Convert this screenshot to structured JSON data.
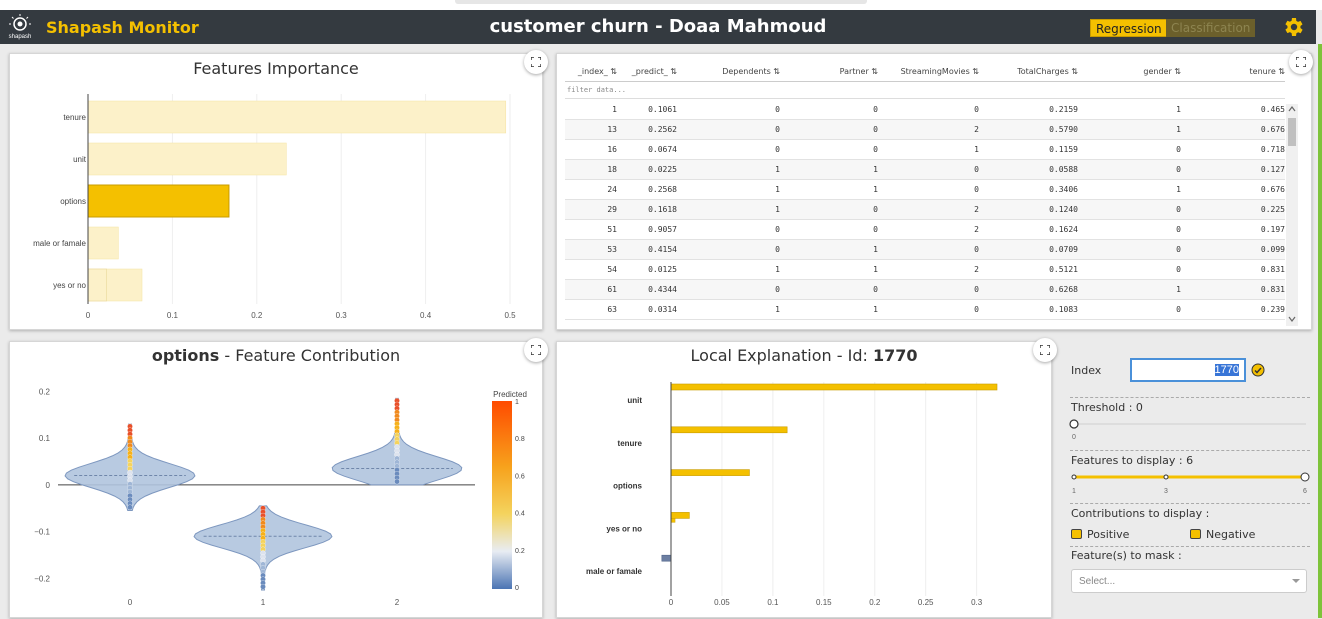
{
  "app": {
    "brand": "Shapash Monitor",
    "logo_text": "shapash",
    "title": "customer churn - Doaa Mahmoud",
    "btn_regression": "Regression",
    "btn_classification": "Classification"
  },
  "colors": {
    "accent": "#f4c000",
    "navbar": "#343a40",
    "violet": "#b0c4de",
    "green": "#7ec33a"
  },
  "features_importance": {
    "title": "Features Importance",
    "chart_data": {
      "type": "bar",
      "orientation": "horizontal",
      "categories": [
        "tenure",
        "unit",
        "options",
        "male or famale",
        "yes or no"
      ],
      "values": [
        0.495,
        0.235,
        0.167,
        0.036,
        0.064
      ],
      "overlay_values": [
        null,
        null,
        null,
        null,
        0.022
      ],
      "highlighted": "options",
      "xticks": [
        "0",
        "0.1",
        "0.2",
        "0.3",
        "0.4",
        "0.5"
      ],
      "xlim": [
        0,
        0.5
      ]
    }
  },
  "table": {
    "filter_placeholder": "filter data...",
    "columns": [
      "_index_",
      "_predict_",
      "Dependents",
      "Partner",
      "StreamingMovies",
      "TotalCharges",
      "gender",
      "tenure"
    ],
    "rows": [
      [
        "1",
        "0.1061",
        "0",
        "0",
        "0",
        "0.2159",
        "1",
        "0.465"
      ],
      [
        "13",
        "0.2562",
        "0",
        "0",
        "2",
        "0.5790",
        "1",
        "0.676"
      ],
      [
        "16",
        "0.0674",
        "0",
        "0",
        "1",
        "0.1159",
        "0",
        "0.718"
      ],
      [
        "18",
        "0.0225",
        "1",
        "1",
        "0",
        "0.0588",
        "0",
        "0.127"
      ],
      [
        "24",
        "0.2568",
        "1",
        "1",
        "0",
        "0.3406",
        "1",
        "0.676"
      ],
      [
        "29",
        "0.1618",
        "1",
        "0",
        "2",
        "0.1240",
        "0",
        "0.225"
      ],
      [
        "51",
        "0.9057",
        "0",
        "0",
        "2",
        "0.1624",
        "0",
        "0.197"
      ],
      [
        "53",
        "0.4154",
        "0",
        "1",
        "0",
        "0.0709",
        "0",
        "0.099"
      ],
      [
        "54",
        "0.0125",
        "1",
        "1",
        "2",
        "0.5121",
        "0",
        "0.831"
      ],
      [
        "61",
        "0.4344",
        "0",
        "0",
        "0",
        "0.6268",
        "1",
        "0.831"
      ],
      [
        "63",
        "0.0314",
        "1",
        "1",
        "0",
        "0.1083",
        "0",
        "0.239"
      ]
    ]
  },
  "feature_contribution": {
    "title_feature": "options",
    "title_rest": " - Feature Contribution",
    "chart_data": {
      "type": "violin",
      "categories": [
        "0",
        "1",
        "2"
      ],
      "medians": [
        0.02,
        -0.11,
        0.035
      ],
      "yticks": [
        "0.2",
        "0.1",
        "0",
        "−0.1",
        "−0.2"
      ],
      "ylim": [
        -0.24,
        0.22
      ],
      "colorbar_title": "Predicted",
      "colorbar_ticks": [
        "1",
        "0.8",
        "0.6",
        "0.4",
        "0.2",
        "0"
      ]
    }
  },
  "local_explanation": {
    "title_prefix": "Local Explanation - Id: ",
    "title_id": "1770",
    "chart_data": {
      "type": "bar",
      "orientation": "horizontal",
      "categories": [
        "unit",
        "tenure",
        "options",
        "yes or no",
        "male or famale"
      ],
      "values": [
        0.32,
        0.114,
        0.077,
        0.018,
        -0.009
      ],
      "secondary_values": [
        null,
        null,
        null,
        0.004,
        null
      ],
      "xticks": [
        "0",
        "0.05",
        "0.1",
        "0.15",
        "0.2",
        "0.25",
        "0.3"
      ],
      "xlim": [
        0,
        0.32
      ]
    }
  },
  "controls": {
    "index_label": "Index",
    "index_value": "1770",
    "threshold_label": "Threshold : 0",
    "threshold_min": "0",
    "features_label": "Features to display : 6",
    "features_ticks": [
      "1",
      "3",
      "6"
    ],
    "contrib_label": "Contributions to display :",
    "positive_label": "Positive",
    "negative_label": "Negative",
    "mask_label": "Feature(s) to mask :",
    "mask_placeholder": "Select..."
  }
}
